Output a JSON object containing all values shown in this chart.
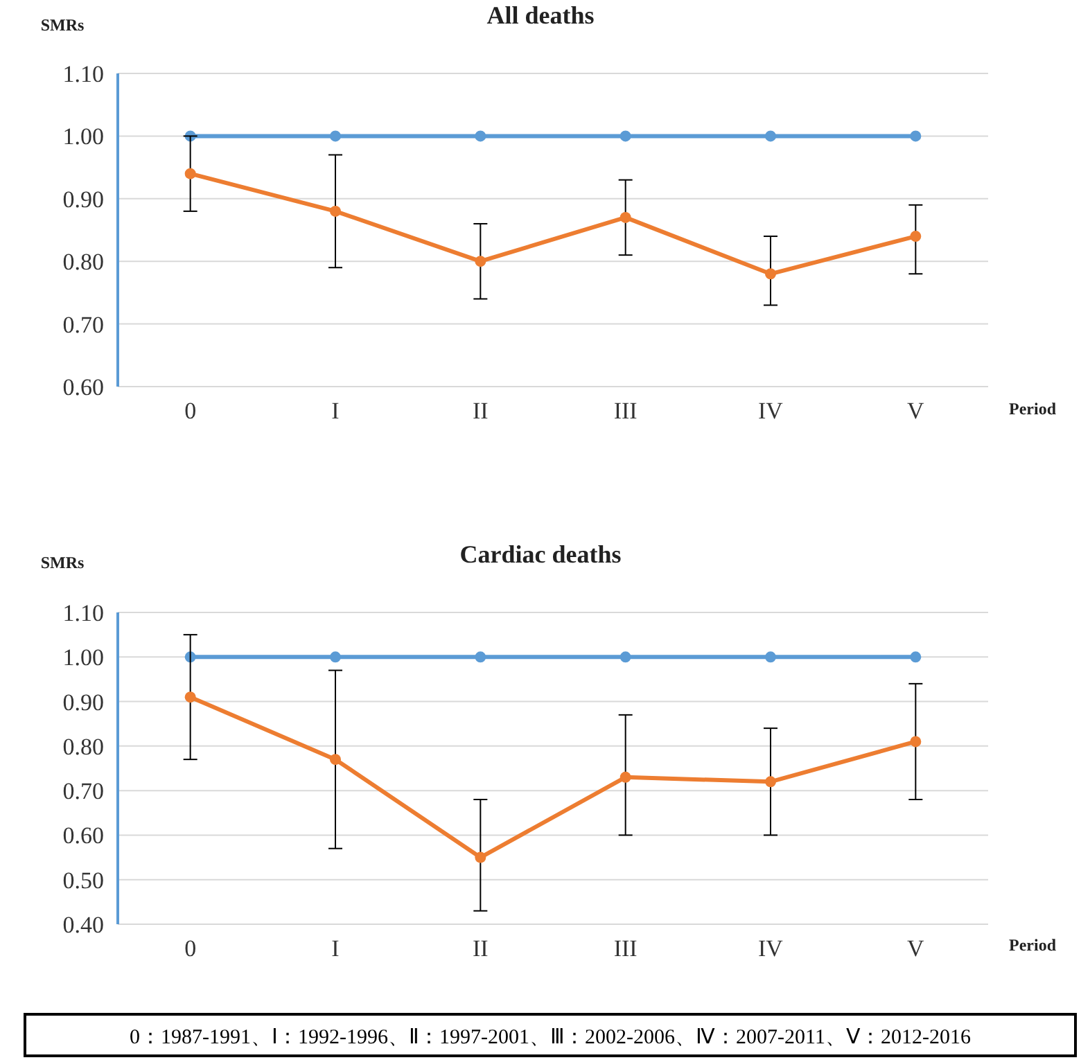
{
  "chart_data": [
    {
      "type": "line",
      "title": "All deaths",
      "xlabel": "Period",
      "ylabel": "SMRs",
      "categories": [
        "0",
        "I",
        "II",
        "III",
        "IV",
        "V"
      ],
      "series": [
        {
          "color": "#5b9bd5",
          "values": [
            1.0,
            1.0,
            1.0,
            1.0,
            1.0,
            1.0
          ]
        },
        {
          "color": "#ed7d31",
          "values": [
            0.94,
            0.88,
            0.8,
            0.87,
            0.78,
            0.84
          ],
          "errors": [
            [
              0.88,
              1.0
            ],
            [
              0.79,
              0.97
            ],
            [
              0.74,
              0.86
            ],
            [
              0.81,
              0.93
            ],
            [
              0.73,
              0.84
            ],
            [
              0.78,
              0.89
            ]
          ]
        }
      ],
      "ylim": [
        0.6,
        1.1
      ],
      "yticks": [
        {
          "value": 0.6,
          "label": "0.60"
        },
        {
          "value": 0.7,
          "label": "0.70"
        },
        {
          "value": 0.8,
          "label": "0.80"
        },
        {
          "value": 0.9,
          "label": "0.90"
        },
        {
          "value": 1.0,
          "label": "1.00"
        },
        {
          "value": 1.1,
          "label": "1.10"
        }
      ],
      "grid": "y",
      "marker": "circle"
    },
    {
      "type": "line",
      "title": "Cardiac deaths",
      "xlabel": "Period",
      "ylabel": "SMRs",
      "categories": [
        "0",
        "I",
        "II",
        "III",
        "IV",
        "V"
      ],
      "series": [
        {
          "color": "#5b9bd5",
          "values": [
            1.0,
            1.0,
            1.0,
            1.0,
            1.0,
            1.0
          ]
        },
        {
          "color": "#ed7d31",
          "values": [
            0.91,
            0.77,
            0.55,
            0.73,
            0.72,
            0.81
          ],
          "errors": [
            [
              0.77,
              1.05
            ],
            [
              0.57,
              0.97
            ],
            [
              0.43,
              0.68
            ],
            [
              0.6,
              0.87
            ],
            [
              0.6,
              0.84
            ],
            [
              0.68,
              0.94
            ]
          ]
        }
      ],
      "ylim": [
        0.4,
        1.1
      ],
      "yticks": [
        {
          "value": 0.4,
          "label": "0.40"
        },
        {
          "value": 0.5,
          "label": "0.50"
        },
        {
          "value": 0.6,
          "label": "0.60"
        },
        {
          "value": 0.7,
          "label": "0.70"
        },
        {
          "value": 0.8,
          "label": "0.80"
        },
        {
          "value": 0.9,
          "label": "0.90"
        },
        {
          "value": 1.0,
          "label": "1.00"
        },
        {
          "value": 1.1,
          "label": "1.10"
        }
      ],
      "grid": "y",
      "marker": "circle",
      "annotations": [
        "0：1987-1991、Ⅰ：1992-1996、Ⅱ：1997-2001、Ⅲ：2002-2006、Ⅳ：2007-2011、Ⅴ：2012-2016"
      ]
    }
  ]
}
